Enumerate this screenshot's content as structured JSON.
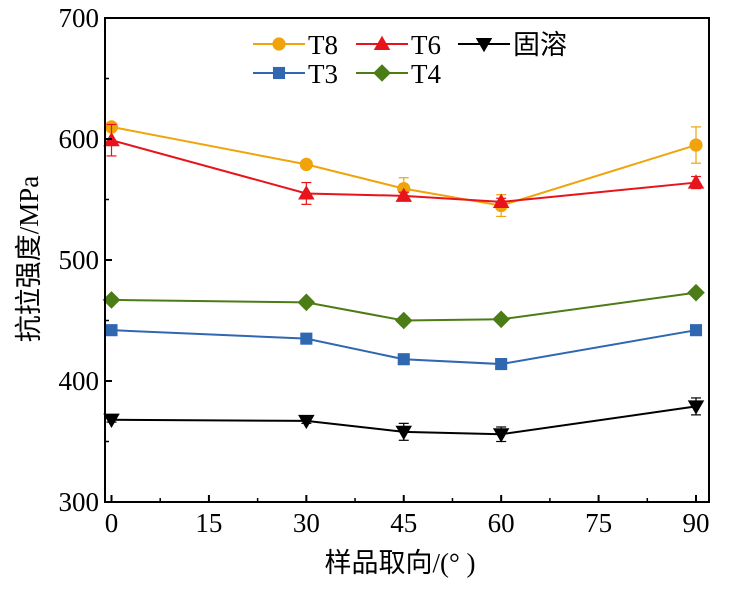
{
  "chart_data": {
    "type": "line",
    "xlabel": "样品取向/(° )",
    "ylabel": "抗拉强度/MPa",
    "xlim": [
      -1,
      92
    ],
    "ylim": [
      300,
      700
    ],
    "x_ticks": [
      "0",
      "15",
      "30",
      "45",
      "60",
      "75",
      "90"
    ],
    "y_ticks": [
      "300",
      "400",
      "500",
      "600",
      "700"
    ],
    "x": [
      0,
      30,
      45,
      60,
      90
    ],
    "grid": false,
    "legend_position": "top-center",
    "series": [
      {
        "name": "T8",
        "color": "#f0a30a",
        "marker": "circle",
        "values": [
          610,
          579,
          559,
          545,
          595
        ],
        "errors": [
          3,
          3,
          9,
          9,
          15
        ]
      },
      {
        "name": "T6",
        "color": "#e8141b",
        "marker": "triangle-up",
        "values": [
          599,
          555,
          553,
          548,
          564
        ],
        "errors": [
          13,
          9,
          3,
          3,
          5
        ]
      },
      {
        "name": "固溶",
        "color": "#000000",
        "marker": "triangle-down",
        "values": [
          368,
          367,
          358,
          356,
          379
        ],
        "errors": [
          2,
          2,
          7,
          6,
          7
        ]
      },
      {
        "name": "T3",
        "color": "#2f67b1",
        "marker": "square",
        "values": [
          442,
          435,
          418,
          414,
          442
        ],
        "errors": [
          2,
          2,
          2,
          2,
          2
        ]
      },
      {
        "name": "T4",
        "color": "#4b7c16",
        "marker": "diamond",
        "values": [
          467,
          465,
          450,
          451,
          473
        ],
        "errors": [
          2,
          2,
          2,
          2,
          2
        ]
      }
    ]
  }
}
